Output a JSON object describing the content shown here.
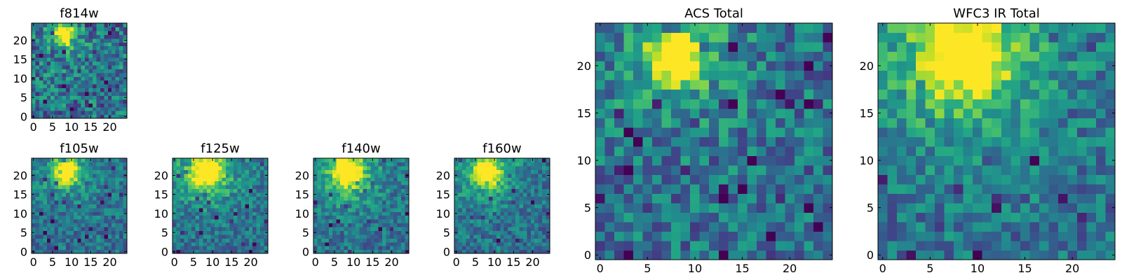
{
  "chart_data": [
    {
      "type": "heatmap",
      "title": "f814w",
      "xticks": [
        0,
        5,
        10,
        15,
        20
      ],
      "yticks": [
        0,
        5,
        10,
        15,
        20
      ],
      "xlim": [
        0,
        25
      ],
      "ylim": [
        0,
        25
      ],
      "grid": false,
      "colormap": "viridis",
      "peak": {
        "x": 8,
        "y": 21.5
      },
      "peak_width": 2.0,
      "noise": 0.33,
      "halo": 0.1,
      "seed": 11
    },
    {
      "type": "heatmap",
      "title": "f105w",
      "xticks": [
        0,
        5,
        10,
        15,
        20
      ],
      "yticks": [
        0,
        5,
        10,
        15,
        20
      ],
      "xlim": [
        0,
        25
      ],
      "ylim": [
        0,
        25
      ],
      "grid": false,
      "colormap": "viridis",
      "peak": {
        "x": 8.5,
        "y": 21
      },
      "peak_width": 2.2,
      "noise": 0.22,
      "halo": 0.18,
      "seed": 23
    },
    {
      "type": "heatmap",
      "title": "f125w",
      "xticks": [
        0,
        5,
        10,
        15,
        20
      ],
      "yticks": [
        0,
        5,
        10,
        15,
        20
      ],
      "xlim": [
        0,
        25
      ],
      "ylim": [
        0,
        25
      ],
      "grid": false,
      "colormap": "viridis",
      "peak": {
        "x": 8.5,
        "y": 21
      },
      "peak_width": 2.6,
      "noise": 0.22,
      "halo": 0.3,
      "seed": 37
    },
    {
      "type": "heatmap",
      "title": "f140w",
      "xticks": [
        0,
        5,
        10,
        15,
        20
      ],
      "yticks": [
        0,
        5,
        10,
        15,
        20
      ],
      "xlim": [
        0,
        25
      ],
      "ylim": [
        0,
        25
      ],
      "grid": false,
      "colormap": "viridis",
      "peak": {
        "x": 8.5,
        "y": 21
      },
      "peak_width": 2.6,
      "noise": 0.22,
      "halo": 0.28,
      "seed": 41
    },
    {
      "type": "heatmap",
      "title": "f160w",
      "xticks": [
        0,
        5,
        10,
        15,
        20
      ],
      "yticks": [
        0,
        5,
        10,
        15,
        20
      ],
      "xlim": [
        0,
        25
      ],
      "ylim": [
        0,
        25
      ],
      "grid": false,
      "colormap": "viridis",
      "peak": {
        "x": 8,
        "y": 21
      },
      "peak_width": 2.4,
      "noise": 0.22,
      "halo": 0.25,
      "seed": 53
    },
    {
      "type": "heatmap",
      "title": "ACS Total",
      "xticks": [
        0,
        5,
        10,
        15,
        20
      ],
      "yticks": [
        0,
        5,
        10,
        15,
        20
      ],
      "xlim": [
        0,
        25
      ],
      "ylim": [
        0,
        25
      ],
      "grid": false,
      "colormap": "viridis",
      "peak": {
        "x": 8,
        "y": 21
      },
      "peak_width": 2.2,
      "noise": 0.28,
      "halo": 0.16,
      "seed": 67
    },
    {
      "type": "heatmap",
      "title": "WFC3 IR Total",
      "xticks": [
        0,
        5,
        10,
        15,
        20
      ],
      "yticks": [
        0,
        5,
        10,
        15,
        20
      ],
      "xlim": [
        0,
        25
      ],
      "ylim": [
        0,
        25
      ],
      "grid": false,
      "colormap": "viridis",
      "peak": {
        "x": 8.5,
        "y": 21
      },
      "peak_width": 2.8,
      "noise": 0.24,
      "halo": 0.32,
      "seed": 79
    }
  ]
}
